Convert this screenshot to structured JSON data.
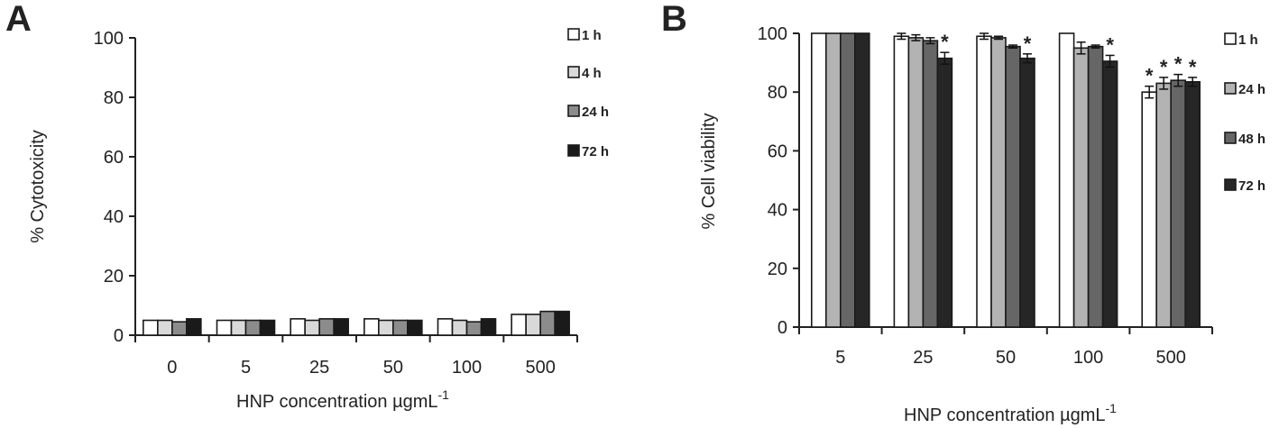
{
  "chart_data": [
    {
      "type": "bar",
      "panel_label": "A",
      "title": "",
      "xlabel": "HNP concentration µgmL",
      "xlabel_superscript": "-1",
      "ylabel": "% Cytotoxicity",
      "ylim": [
        0,
        100
      ],
      "yticks": [
        0,
        20,
        40,
        60,
        80,
        100
      ],
      "categories": [
        "0",
        "5",
        "25",
        "50",
        "100",
        "500"
      ],
      "series": [
        {
          "name": "1 h",
          "color": "#ffffff",
          "values": [
            5,
            5,
            5.5,
            5.5,
            5.5,
            7
          ]
        },
        {
          "name": "4 h",
          "color": "#d9d9d9",
          "values": [
            5,
            5,
            5,
            5,
            5,
            7
          ]
        },
        {
          "name": "24 h",
          "color": "#8c8c8c",
          "values": [
            4.5,
            5,
            5.5,
            5,
            4.5,
            8
          ]
        },
        {
          "name": "72 h",
          "color": "#1a1a1a",
          "values": [
            5.5,
            5,
            5.5,
            5,
            5.5,
            8
          ]
        }
      ],
      "legend": "top-right",
      "grid": false
    },
    {
      "type": "bar",
      "panel_label": "B",
      "title": "",
      "xlabel": "HNP concentration µgmL",
      "xlabel_superscript": "-1",
      "ylabel": "% Cell viability",
      "ylim": [
        0,
        100
      ],
      "yticks": [
        0,
        20,
        40,
        60,
        80,
        100
      ],
      "categories": [
        "5",
        "25",
        "50",
        "100",
        "500"
      ],
      "series": [
        {
          "name": "1 h",
          "color": "#ffffff",
          "values": [
            100,
            99,
            99,
            100,
            80
          ],
          "errors": [
            0,
            1,
            1,
            0,
            2
          ],
          "significant": [
            false,
            false,
            false,
            false,
            true
          ]
        },
        {
          "name": "24 h",
          "color": "#b3b3b3",
          "values": [
            100,
            98.5,
            98.5,
            95,
            83
          ],
          "errors": [
            0,
            1,
            0.5,
            2,
            2
          ],
          "significant": [
            false,
            false,
            false,
            false,
            true
          ]
        },
        {
          "name": "48 h",
          "color": "#666666",
          "values": [
            100,
            97.5,
            95.5,
            95.5,
            84
          ],
          "errors": [
            0,
            1,
            0.5,
            0.5,
            2
          ],
          "significant": [
            false,
            false,
            false,
            false,
            true
          ]
        },
        {
          "name": "72 h",
          "color": "#262626",
          "values": [
            100,
            91.5,
            91.5,
            90.5,
            83.5
          ],
          "errors": [
            0,
            2,
            1.5,
            2,
            1.5
          ],
          "significant": [
            false,
            true,
            true,
            true,
            true
          ]
        }
      ],
      "significance_marker": "*",
      "legend": "right",
      "grid": false
    }
  ]
}
